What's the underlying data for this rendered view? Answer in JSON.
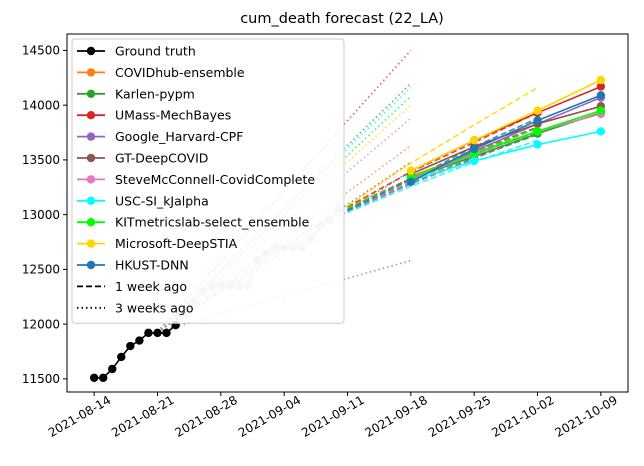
{
  "chart_data": {
    "type": "line",
    "title": "cum_death forecast (22_LA)",
    "xlabel": "",
    "ylabel": "",
    "x_ticks": [
      "2021-08-14",
      "2021-08-21",
      "2021-08-28",
      "2021-09-04",
      "2021-09-11",
      "2021-09-18",
      "2021-09-25",
      "2021-10-02",
      "2021-10-09"
    ],
    "y_ticks": [
      11500,
      12000,
      12500,
      13000,
      13500,
      14000,
      14500
    ],
    "xlim": [
      "2021-08-11",
      "2021-10-12"
    ],
    "ylim": [
      11380,
      14650
    ],
    "grid": false,
    "legend_position": "upper-left",
    "line_styles": {
      "solid": "",
      "dashed": "1 week ago",
      "dotted": "3 weeks ago"
    },
    "ground_truth": {
      "name": "Ground truth",
      "color": "#000000",
      "points": [
        [
          "2021-08-14",
          11510
        ],
        [
          "2021-08-15",
          11510
        ],
        [
          "2021-08-16",
          11590
        ],
        [
          "2021-08-17",
          11700
        ],
        [
          "2021-08-18",
          11800
        ],
        [
          "2021-08-19",
          11850
        ],
        [
          "2021-08-20",
          11920
        ],
        [
          "2021-08-21",
          11920
        ],
        [
          "2021-08-22",
          11920
        ],
        [
          "2021-08-23",
          11990
        ]
      ]
    },
    "later_truth": {
      "color": "#c8c8c8",
      "points": [
        [
          "2021-08-23",
          11990
        ],
        [
          "2021-08-24",
          12100
        ],
        [
          "2021-08-25",
          12200
        ],
        [
          "2021-08-26",
          12300
        ],
        [
          "2021-08-27",
          12350
        ],
        [
          "2021-08-28",
          12350
        ],
        [
          "2021-08-29",
          12350
        ],
        [
          "2021-08-30",
          12350
        ],
        [
          "2021-08-31",
          12350
        ],
        [
          "2021-09-01",
          12590
        ],
        [
          "2021-09-02",
          12650
        ],
        [
          "2021-09-03",
          12700
        ],
        [
          "2021-09-04",
          12700
        ],
        [
          "2021-09-05",
          12700
        ],
        [
          "2021-09-06",
          12700
        ],
        [
          "2021-09-07",
          12780
        ],
        [
          "2021-09-08",
          12900
        ],
        [
          "2021-09-09",
          12950
        ],
        [
          "2021-09-10",
          13050
        ]
      ]
    },
    "series": [
      {
        "name": "COVIDhub-ensemble",
        "color": "#ff7f0e",
        "current": [
          [
            "2021-09-18",
            13350
          ],
          [
            "2021-09-25",
            13560
          ],
          [
            "2021-10-02",
            13760
          ],
          [
            "2021-10-09",
            13950
          ]
        ],
        "week_ago": [
          [
            "2021-09-11",
            13070
          ],
          [
            "2021-09-18",
            13330
          ],
          [
            "2021-09-25",
            13570
          ],
          [
            "2021-10-02",
            13790
          ]
        ],
        "three_weeks_ago": [
          [
            "2021-08-21",
            11930
          ],
          [
            "2021-09-18",
            13630
          ]
        ]
      },
      {
        "name": "Karlen-pypm",
        "color": "#2ca02c",
        "current": [
          [
            "2021-09-18",
            13330
          ],
          [
            "2021-09-25",
            13530
          ],
          [
            "2021-10-02",
            13740
          ],
          [
            "2021-10-09",
            13930
          ]
        ],
        "week_ago": [
          [
            "2021-09-11",
            13040
          ],
          [
            "2021-09-18",
            13290
          ],
          [
            "2021-09-25",
            13520
          ],
          [
            "2021-10-02",
            13730
          ]
        ],
        "three_weeks_ago": [
          [
            "2021-08-21",
            11930
          ],
          [
            "2021-09-18",
            14200
          ]
        ]
      },
      {
        "name": "UMass-MechBayes",
        "color": "#d62728",
        "current": [
          [
            "2021-09-18",
            13400
          ],
          [
            "2021-09-25",
            13680
          ],
          [
            "2021-10-02",
            13930
          ],
          [
            "2021-10-09",
            14170
          ]
        ],
        "week_ago": [
          [
            "2021-09-11",
            13070
          ],
          [
            "2021-09-18",
            13390
          ],
          [
            "2021-09-25",
            13660
          ],
          [
            "2021-10-02",
            13930
          ]
        ],
        "three_weeks_ago": [
          [
            "2021-08-21",
            11930
          ],
          [
            "2021-09-18",
            14500
          ]
        ]
      },
      {
        "name": "Google_Harvard-CPF",
        "color": "#9467bd",
        "current": [
          [
            "2021-09-18",
            13330
          ],
          [
            "2021-09-25",
            13580
          ],
          [
            "2021-10-02",
            13830
          ],
          [
            "2021-10-09",
            14070
          ]
        ],
        "week_ago": [
          [
            "2021-09-11",
            13030
          ],
          [
            "2021-09-18",
            13280
          ],
          [
            "2021-09-25",
            13510
          ],
          [
            "2021-10-02",
            13750
          ]
        ],
        "three_weeks_ago": [
          [
            "2021-08-21",
            11930
          ],
          [
            "2021-09-18",
            12580
          ]
        ]
      },
      {
        "name": "GT-DeepCOVID",
        "color": "#8c564b",
        "current": [
          [
            "2021-09-18",
            13370
          ],
          [
            "2021-09-25",
            13620
          ],
          [
            "2021-10-02",
            13830
          ],
          [
            "2021-10-09",
            13990
          ]
        ],
        "week_ago": [
          [
            "2021-09-11",
            13050
          ],
          [
            "2021-09-18",
            13330
          ],
          [
            "2021-09-25",
            13580
          ],
          [
            "2021-10-02",
            13800
          ]
        ],
        "three_weeks_ago": [
          [
            "2021-08-21",
            11930
          ],
          [
            "2021-09-18",
            13480
          ]
        ]
      },
      {
        "name": "SteveMcConnell-CovidComplete",
        "color": "#e377c2",
        "current": [
          [
            "2021-09-18",
            13330
          ],
          [
            "2021-09-25",
            13550
          ],
          [
            "2021-10-02",
            13760
          ],
          [
            "2021-10-09",
            13920
          ]
        ],
        "week_ago": [
          [
            "2021-09-11",
            13040
          ],
          [
            "2021-09-18",
            13300
          ],
          [
            "2021-09-25",
            13540
          ],
          [
            "2021-10-02",
            13760
          ]
        ],
        "three_weeks_ago": [
          [
            "2021-08-21",
            11930
          ],
          [
            "2021-09-18",
            13880
          ]
        ]
      },
      {
        "name": "USC-SI_kJalpha",
        "color": "#00ffff",
        "current": [
          [
            "2021-09-18",
            13310
          ],
          [
            "2021-09-25",
            13490
          ],
          [
            "2021-10-02",
            13640
          ],
          [
            "2021-10-09",
            13760
          ]
        ],
        "week_ago": [
          [
            "2021-09-11",
            13020
          ],
          [
            "2021-09-18",
            13260
          ],
          [
            "2021-09-25",
            13480
          ],
          [
            "2021-10-02",
            13680
          ]
        ],
        "three_weeks_ago": [
          [
            "2021-08-21",
            11930
          ],
          [
            "2021-09-18",
            14160
          ]
        ]
      },
      {
        "name": "KITmetricslab-select_ensemble",
        "color": "#00ff00",
        "current": [
          [
            "2021-09-18",
            13340
          ],
          [
            "2021-09-25",
            13560
          ],
          [
            "2021-10-02",
            13760
          ],
          [
            "2021-10-09",
            13950
          ]
        ],
        "week_ago": [
          [
            "2021-09-11",
            13060
          ],
          [
            "2021-09-18",
            13320
          ],
          [
            "2021-09-25",
            13560
          ],
          [
            "2021-10-02",
            13790
          ]
        ],
        "three_weeks_ago": [
          [
            "2021-08-21",
            11930
          ],
          [
            "2021-09-18",
            14080
          ]
        ]
      },
      {
        "name": "Microsoft-DeepSTIA",
        "color": "#ffd700",
        "current": [
          [
            "2021-09-18",
            13400
          ],
          [
            "2021-09-25",
            13680
          ],
          [
            "2021-10-02",
            13950
          ],
          [
            "2021-10-09",
            14230
          ]
        ],
        "week_ago": [
          [
            "2021-09-11",
            13080
          ],
          [
            "2021-09-18",
            13470
          ],
          [
            "2021-09-25",
            13820
          ],
          [
            "2021-10-02",
            14160
          ]
        ],
        "three_weeks_ago": [
          [
            "2021-08-21",
            11930
          ],
          [
            "2021-09-18",
            14000
          ]
        ]
      },
      {
        "name": "HKUST-DNN",
        "color": "#1f77b4",
        "current": [
          [
            "2021-09-18",
            13300
          ],
          [
            "2021-09-25",
            13600
          ],
          [
            "2021-10-02",
            13860
          ],
          [
            "2021-10-09",
            14090
          ]
        ],
        "week_ago": [
          [
            "2021-09-11",
            13040
          ],
          [
            "2021-09-18",
            13320
          ],
          [
            "2021-09-25",
            13620
          ],
          [
            "2021-10-02",
            13880
          ]
        ],
        "three_weeks_ago": [
          [
            "2021-08-21",
            11930
          ],
          [
            "2021-09-18",
            13400
          ]
        ]
      }
    ]
  }
}
